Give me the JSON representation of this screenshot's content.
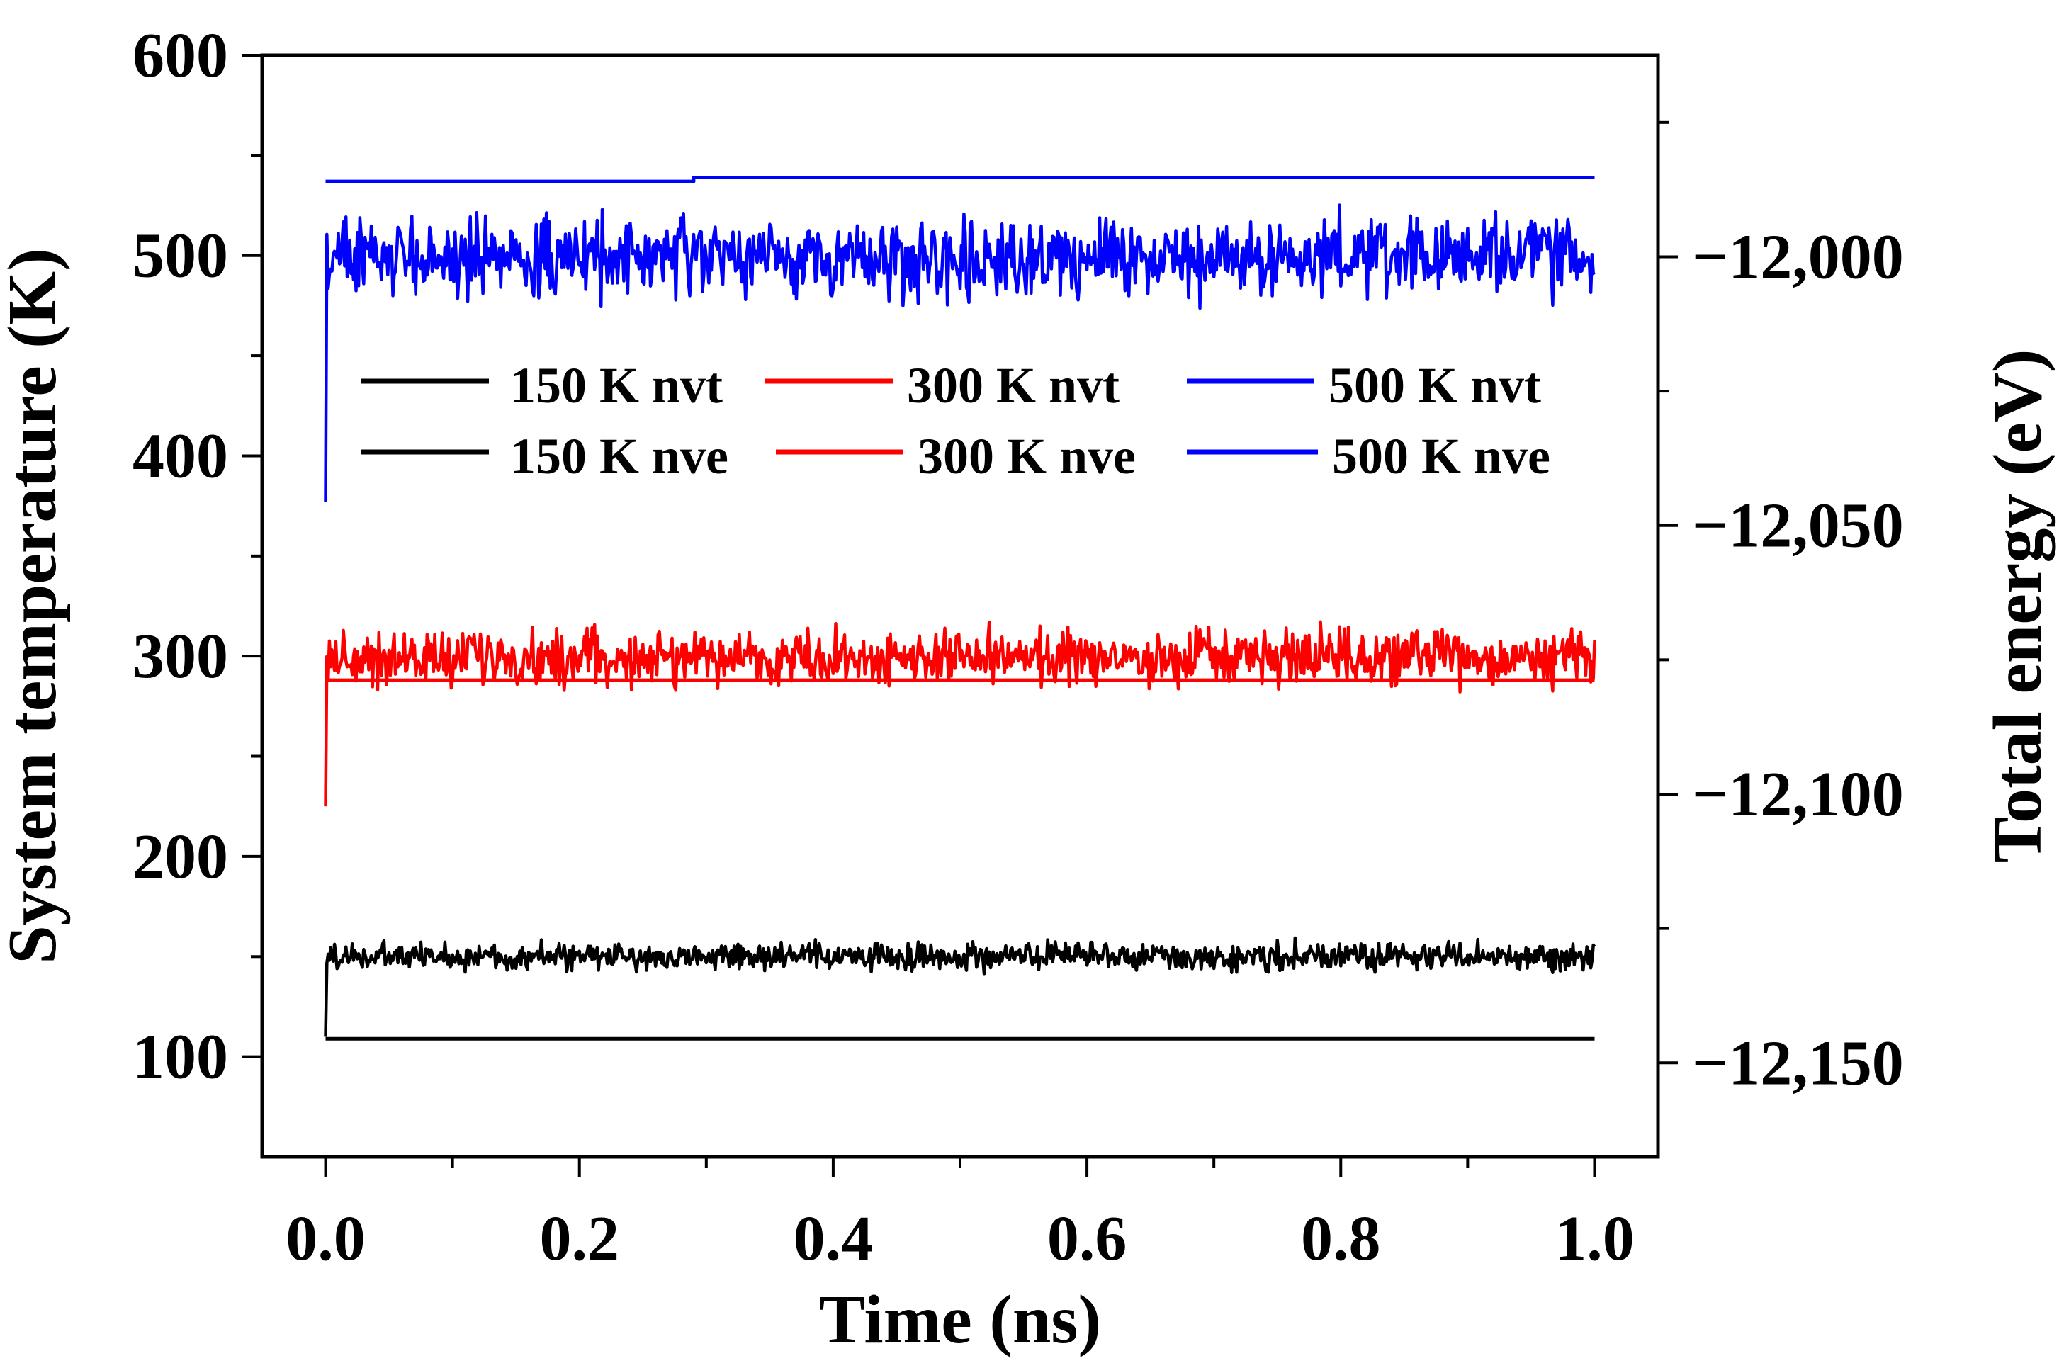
{
  "chart_data": {
    "type": "line",
    "title": "",
    "xlabel": "Time (ns)",
    "ylabel": "System temperature (K)",
    "y2label": "Total energy (eV)",
    "xlim": [
      -0.05,
      1.05
    ],
    "ylim": [
      50,
      600
    ],
    "y2lim": [
      -12167.5,
      -11962.5
    ],
    "xticks": [
      0.0,
      0.2,
      0.4,
      0.6,
      0.8,
      1.0
    ],
    "xtick_labels": [
      "0.0",
      "0.2",
      "0.4",
      "0.6",
      "0.8",
      "1.0"
    ],
    "yticks": [
      100,
      200,
      300,
      400,
      500,
      600
    ],
    "ytick_labels": [
      "100",
      "200",
      "300",
      "400",
      "500",
      "600"
    ],
    "y2ticks": [
      -12000,
      -12050,
      -12100,
      -12150
    ],
    "y2tick_labels": [
      "−12,000",
      "−12,050",
      "−12,100",
      "−12,150"
    ],
    "legend": {
      "position": "upper-center",
      "entries": [
        {
          "label": "150 K nvt",
          "color": "#000000"
        },
        {
          "label": "300 K nvt",
          "color": "#ff0000"
        },
        {
          "label": "500 K nvt",
          "color": "#0000ff"
        },
        {
          "label": "150 K nve",
          "color": "#000000"
        },
        {
          "label": "300 K nve",
          "color": "#ff0000"
        },
        {
          "label": "500 K nve",
          "color": "#0000ff"
        }
      ]
    },
    "series": [
      {
        "name": "150 K nvt",
        "color": "#000000",
        "axis": "left",
        "kind": "fluctuating",
        "start_value": 110,
        "mean": 150,
        "amplitude": 5
      },
      {
        "name": "300 K nvt",
        "color": "#ff0000",
        "axis": "left",
        "kind": "fluctuating",
        "start_value": 225,
        "mean": 299,
        "amplitude": 10
      },
      {
        "name": "500 K nvt",
        "color": "#0000ff",
        "axis": "left",
        "kind": "fluctuating",
        "start_value": 377,
        "mean": 499,
        "amplitude": 14
      },
      {
        "name": "150 K nve",
        "color": "#000000",
        "axis": "left",
        "kind": "flat",
        "x": [
          0.0,
          1.0
        ],
        "values": [
          109,
          109
        ]
      },
      {
        "name": "300 K nve",
        "color": "#ff0000",
        "axis": "left",
        "kind": "flat",
        "x": [
          0.0,
          1.0
        ],
        "values": [
          288,
          288
        ]
      },
      {
        "name": "500 K nve",
        "color": "#0000ff",
        "axis": "left",
        "kind": "flat",
        "x": [
          0.0,
          0.29,
          0.29,
          1.0
        ],
        "values": [
          537,
          537,
          539,
          539
        ]
      }
    ]
  }
}
